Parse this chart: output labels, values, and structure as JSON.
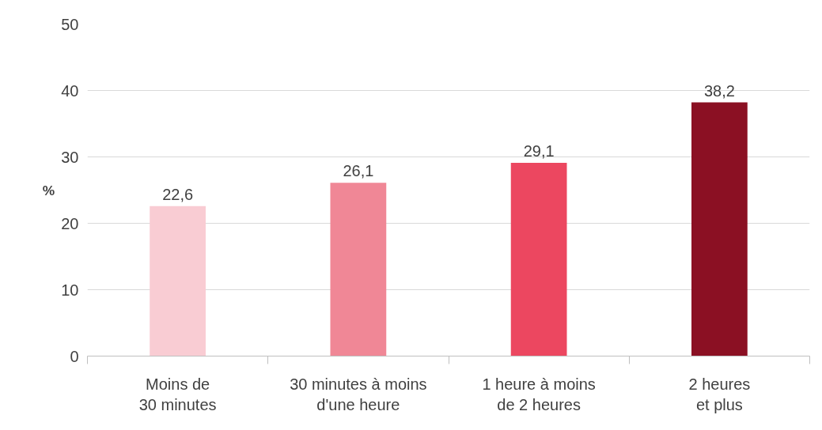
{
  "chart_data": {
    "type": "bar",
    "ylabel": "%",
    "categories": [
      "Moins de\n30 minutes",
      "30 minutes à moins\nd'une heure",
      "1 heure à moins\nde 2 heures",
      "2 heures\net plus"
    ],
    "values": [
      22.6,
      26.1,
      29.1,
      38.2
    ],
    "colors": [
      "#f9ccd3",
      "#f08796",
      "#ec4760",
      "#8b1023"
    ],
    "value_labels": [
      "22,6",
      "26,1",
      "29,1",
      "38,2"
    ],
    "ylim": [
      0,
      50
    ],
    "yticks": [
      0,
      10,
      20,
      30,
      40,
      50
    ],
    "grid": "y"
  }
}
